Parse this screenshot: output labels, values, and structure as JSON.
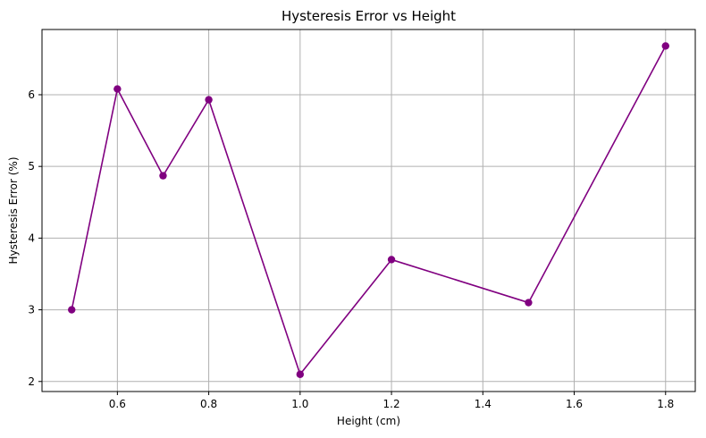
{
  "chart_data": {
    "type": "line",
    "title": "Hysteresis Error vs Height",
    "xlabel": "Height (cm)",
    "ylabel": "Hysteresis Error (%)",
    "x": [
      0.5,
      0.6,
      0.7,
      0.8,
      1.0,
      1.2,
      1.5,
      1.8
    ],
    "series": [
      {
        "values": [
          3.0,
          6.08,
          4.87,
          5.93,
          2.1,
          3.7,
          3.1,
          6.68
        ],
        "color": "#800080",
        "marker": "circle"
      }
    ],
    "xlim": [
      0.435,
      1.865
    ],
    "ylim": [
      1.86,
      6.91
    ],
    "xticks": [
      0.6,
      0.8,
      1.0,
      1.2,
      1.4,
      1.6,
      1.8
    ],
    "xtick_labels": [
      "0.6",
      "0.8",
      "1.0",
      "1.2",
      "1.4",
      "1.6",
      "1.8"
    ],
    "yticks": [
      2,
      3,
      4,
      5,
      6
    ],
    "ytick_labels": [
      "2",
      "3",
      "4",
      "5",
      "6"
    ],
    "grid": true,
    "grid_color": "#b0b0b0"
  }
}
